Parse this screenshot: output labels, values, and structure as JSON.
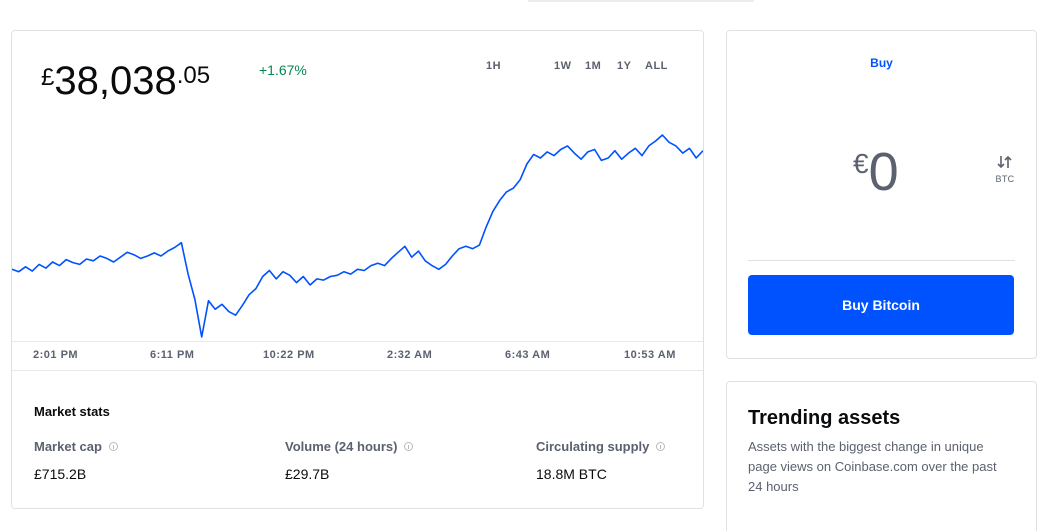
{
  "price": {
    "currency_symbol": "£",
    "integer": "38,038",
    "decimal": ".05",
    "change": "+1.67%"
  },
  "ranges": [
    "1H",
    "1W",
    "1M",
    "1Y",
    "ALL"
  ],
  "chart": {
    "type": "line",
    "color": "#0052ff",
    "x_ticks": [
      "2:01 PM",
      "6:11 PM",
      "10:22 PM",
      "2:32 AM",
      "6:43 AM",
      "10:53 AM"
    ],
    "values": [
      37120,
      37100,
      37140,
      37105,
      37160,
      37130,
      37180,
      37150,
      37200,
      37175,
      37160,
      37205,
      37190,
      37230,
      37210,
      37180,
      37220,
      37260,
      37240,
      37210,
      37230,
      37255,
      37230,
      37270,
      37300,
      37340,
      37080,
      36870,
      36560,
      36860,
      36790,
      36830,
      36770,
      36740,
      36820,
      36910,
      36960,
      37060,
      37110,
      37040,
      37100,
      37070,
      37010,
      37060,
      36990,
      37040,
      37030,
      37060,
      37070,
      37100,
      37080,
      37120,
      37110,
      37150,
      37170,
      37150,
      37210,
      37260,
      37310,
      37220,
      37270,
      37190,
      37150,
      37120,
      37160,
      37230,
      37290,
      37310,
      37290,
      37320,
      37470,
      37600,
      37690,
      37760,
      37790,
      37860,
      37990,
      38070,
      38040,
      38090,
      38060,
      38110,
      38140,
      38080,
      38030,
      38090,
      38110,
      38020,
      38040,
      38100,
      38030,
      38080,
      38120,
      38060,
      38140,
      38180,
      38230,
      38170,
      38140,
      38080,
      38120,
      38040,
      38100
    ]
  },
  "market_stats": {
    "title": "Market stats",
    "items": [
      {
        "label": "Market cap",
        "value": "£715.2B"
      },
      {
        "label": "Volume (24 hours)",
        "value": "£29.7B"
      },
      {
        "label": "Circulating supply",
        "value": "18.8M BTC"
      }
    ]
  },
  "buy": {
    "tab_label": "Buy",
    "currency_symbol": "€",
    "amount": "0",
    "switch_label": "BTC",
    "button_label": "Buy Bitcoin"
  },
  "trending": {
    "title": "Trending assets",
    "description": "Assets with the biggest change in unique page views on Coinbase.com over the past 24 hours"
  },
  "colors": {
    "accent": "#0052ff",
    "positive": "#098551",
    "muted": "#5b616e"
  }
}
